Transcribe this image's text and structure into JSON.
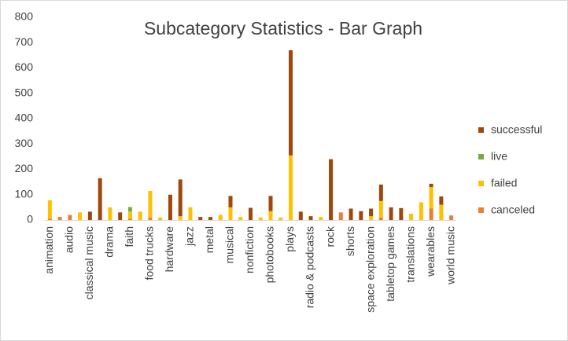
{
  "chart_data": {
    "type": "stacked_bar",
    "title": "Subcategory Statistics - Bar Graph",
    "categories": [
      "animation",
      null,
      "audio",
      null,
      "classical music",
      null,
      "drama",
      null,
      "faith",
      null,
      "food trucks",
      null,
      "hardware",
      null,
      "jazz",
      null,
      "metal",
      null,
      "musical",
      null,
      "nonfiction",
      null,
      "photobooks",
      null,
      "plays",
      null,
      "radio & podcasts",
      null,
      "rock",
      null,
      "shorts",
      null,
      "space exploration",
      null,
      "tabletop games",
      null,
      "translations",
      null,
      "wearables",
      null,
      "world music"
    ],
    "series": [
      {
        "name": "canceled",
        "color": "#ed7d31",
        "values": [
          5,
          12,
          20,
          0,
          0,
          0,
          0,
          0,
          5,
          0,
          10,
          0,
          0,
          0,
          0,
          0,
          0,
          0,
          0,
          0,
          0,
          0,
          0,
          0,
          0,
          0,
          0,
          0,
          0,
          30,
          0,
          0,
          0,
          10,
          0,
          0,
          0,
          0,
          45,
          0,
          18
        ]
      },
      {
        "name": "failed",
        "color": "#ffc000",
        "values": [
          73,
          0,
          0,
          30,
          0,
          0,
          50,
          0,
          28,
          33,
          105,
          10,
          0,
          15,
          50,
          0,
          0,
          20,
          50,
          12,
          0,
          10,
          35,
          10,
          255,
          0,
          0,
          12,
          0,
          0,
          0,
          0,
          15,
          65,
          0,
          0,
          25,
          70,
          85,
          60,
          0
        ]
      },
      {
        "name": "live",
        "color": "#70ad47",
        "values": [
          0,
          0,
          0,
          0,
          0,
          0,
          0,
          0,
          18,
          0,
          0,
          0,
          0,
          0,
          0,
          0,
          0,
          0,
          0,
          0,
          0,
          0,
          0,
          0,
          0,
          0,
          0,
          0,
          0,
          0,
          0,
          0,
          0,
          0,
          0,
          0,
          0,
          0,
          0,
          0,
          0
        ]
      },
      {
        "name": "successful",
        "color": "#9e480e",
        "values": [
          0,
          0,
          0,
          0,
          33,
          165,
          0,
          30,
          0,
          0,
          0,
          0,
          100,
          145,
          0,
          12,
          12,
          0,
          45,
          0,
          48,
          0,
          60,
          0,
          415,
          33,
          15,
          0,
          240,
          0,
          45,
          35,
          30,
          65,
          50,
          47,
          0,
          0,
          13,
          33,
          0
        ]
      }
    ],
    "ylim": [
      0,
      800
    ],
    "yticks": [
      0,
      100,
      200,
      300,
      400,
      500,
      600,
      700,
      800
    ],
    "legend": "right"
  }
}
